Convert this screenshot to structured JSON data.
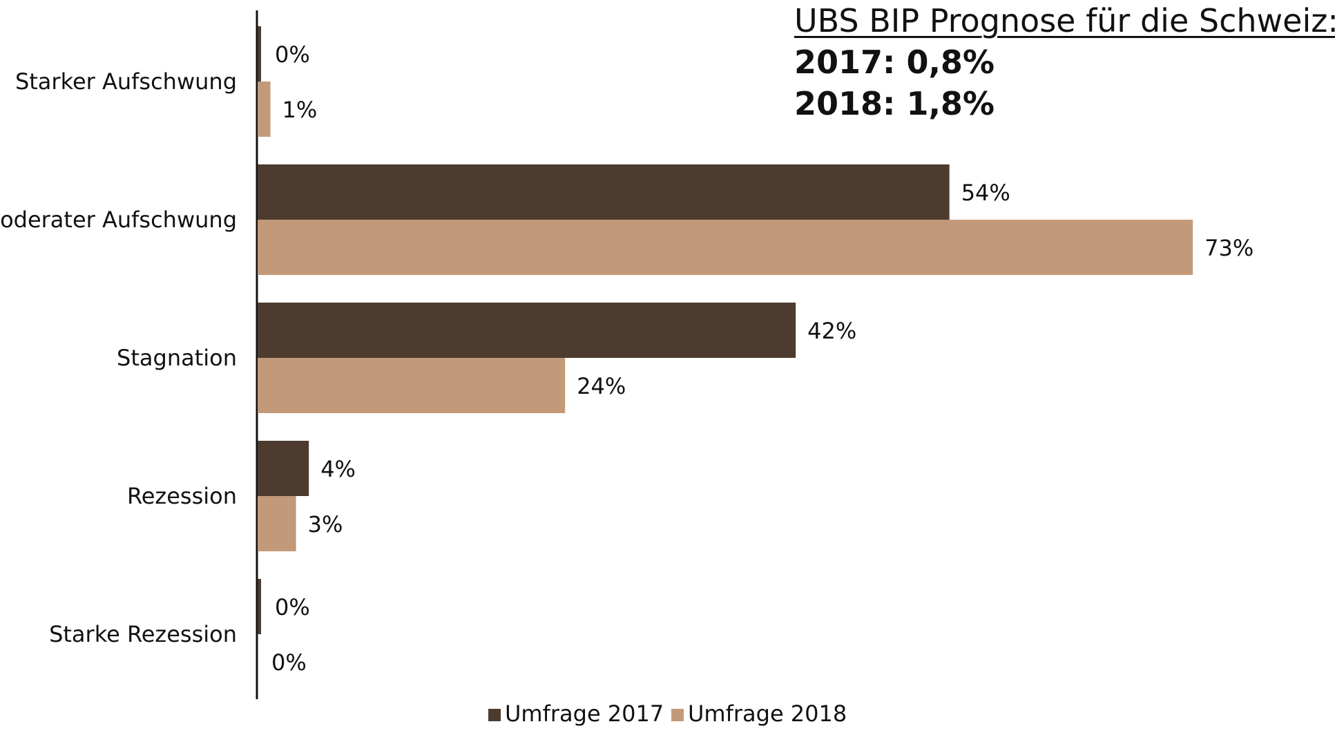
{
  "annotation": {
    "title": "UBS BIP Prognose für die Schweiz:",
    "lines": [
      "2017: 0,8%",
      "2018: 1,8%"
    ]
  },
  "chart_data": {
    "type": "bar",
    "orientation": "horizontal",
    "categories": [
      "Starker Aufschwung",
      "Moderater Aufschwung",
      "Stagnation",
      "Rezession",
      "Starke Rezession"
    ],
    "series": [
      {
        "name": "Umfrage 2017",
        "values": [
          0,
          54,
          42,
          4,
          0
        ],
        "labels": [
          "0%",
          "54%",
          "42%",
          "4%",
          "0%"
        ],
        "color": "#4d3b30"
      },
      {
        "name": "Umfrage 2018",
        "values": [
          1,
          73,
          24,
          3,
          0
        ],
        "labels": [
          "1%",
          "73%",
          "24%",
          "3%",
          "0%"
        ],
        "color": "#c29a7a"
      }
    ],
    "xlim": [
      0,
      80
    ],
    "grid": false,
    "legend": "bottom-center"
  }
}
